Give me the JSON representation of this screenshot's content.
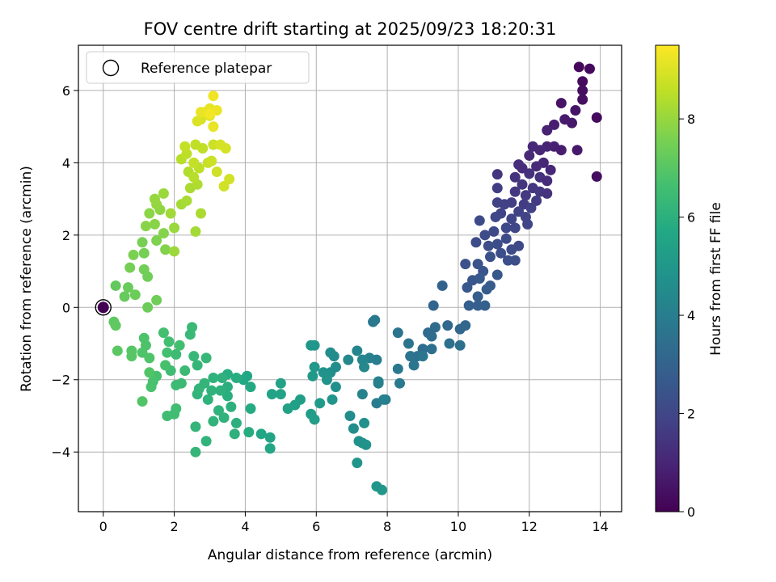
{
  "chart_data": {
    "type": "scatter",
    "title": "FOV centre drift starting at 2025/09/23 18:20:31",
    "xlabel": "Angular distance from reference (arcmin)",
    "ylabel": "Rotation from reference (arcmin)",
    "xlim": [
      -0.7,
      14.6
    ],
    "ylim": [
      -5.65,
      7.25
    ],
    "xticks": [
      0,
      2,
      4,
      6,
      8,
      10,
      12,
      14
    ],
    "yticks": [
      -4,
      -2,
      0,
      2,
      4,
      6
    ],
    "xtick_labels": [
      "0",
      "2",
      "4",
      "6",
      "8",
      "10",
      "12",
      "14"
    ],
    "ytick_labels": [
      "−4",
      "−2",
      "0",
      "2",
      "4",
      "6"
    ],
    "grid": true,
    "legend": {
      "position": "top-left",
      "entries": [
        "Reference platepar"
      ]
    },
    "reference_point": {
      "x": 0,
      "y": 0
    },
    "colorbar": {
      "label": "Hours from first FF file",
      "colormap": "viridis",
      "range": [
        0,
        9.5
      ],
      "ticks": [
        0,
        2,
        4,
        6,
        8
      ],
      "tick_labels": [
        "0",
        "2",
        "4",
        "6",
        "8"
      ]
    },
    "points": [
      [
        13.4,
        6.65,
        0.2
      ],
      [
        13.7,
        6.6,
        0.25
      ],
      [
        13.5,
        6.25,
        0.3
      ],
      [
        13.5,
        6.0,
        0.35
      ],
      [
        13.5,
        5.75,
        0.4
      ],
      [
        13.9,
        5.25,
        0.3
      ],
      [
        13.9,
        3.62,
        0.35
      ],
      [
        12.9,
        5.65,
        0.5
      ],
      [
        13.2,
        5.1,
        0.6
      ],
      [
        13.3,
        5.45,
        0.55
      ],
      [
        13.0,
        5.2,
        0.7
      ],
      [
        12.7,
        5.05,
        0.8
      ],
      [
        12.5,
        4.9,
        0.9
      ],
      [
        12.7,
        4.45,
        0.85
      ],
      [
        12.5,
        4.45,
        0.95
      ],
      [
        12.3,
        4.35,
        1.0
      ],
      [
        12.1,
        4.45,
        1.05
      ],
      [
        12.9,
        4.35,
        0.75
      ],
      [
        13.35,
        4.35,
        0.65
      ],
      [
        12.0,
        4.2,
        1.1
      ],
      [
        12.4,
        4.0,
        1.0
      ],
      [
        12.2,
        3.9,
        1.15
      ],
      [
        12.6,
        3.8,
        1.05
      ],
      [
        11.8,
        3.85,
        1.2
      ],
      [
        11.7,
        3.95,
        1.25
      ],
      [
        12.0,
        3.7,
        1.3
      ],
      [
        12.3,
        3.6,
        1.35
      ],
      [
        12.5,
        3.5,
        1.2
      ],
      [
        11.6,
        3.6,
        1.4
      ],
      [
        11.8,
        3.4,
        1.45
      ],
      [
        12.1,
        3.3,
        1.5
      ],
      [
        12.3,
        3.2,
        1.55
      ],
      [
        11.9,
        3.1,
        1.6
      ],
      [
        11.6,
        3.2,
        1.55
      ],
      [
        11.1,
        3.68,
        1.45
      ],
      [
        12.5,
        3.15,
        1.4
      ],
      [
        12.2,
        2.95,
        1.65
      ],
      [
        11.85,
        2.85,
        1.7
      ],
      [
        11.5,
        2.9,
        1.75
      ],
      [
        11.3,
        2.85,
        1.8
      ],
      [
        11.1,
        2.9,
        1.85
      ],
      [
        12.05,
        2.75,
        1.8
      ],
      [
        11.7,
        2.65,
        1.85
      ],
      [
        11.9,
        2.5,
        1.9
      ],
      [
        11.5,
        2.45,
        1.95
      ],
      [
        11.2,
        2.6,
        1.9
      ],
      [
        11.95,
        2.3,
        1.95
      ],
      [
        11.6,
        2.2,
        2.0
      ],
      [
        11.35,
        2.2,
        2.05
      ],
      [
        11.05,
        2.5,
        2.0
      ],
      [
        11.1,
        3.3,
        1.7
      ],
      [
        11.0,
        2.1,
        2.1
      ],
      [
        10.75,
        2.0,
        2.15
      ],
      [
        10.5,
        1.8,
        2.2
      ],
      [
        10.85,
        1.7,
        2.25
      ],
      [
        11.1,
        1.75,
        2.2
      ],
      [
        11.35,
        1.9,
        2.15
      ],
      [
        11.7,
        1.7,
        2.1
      ],
      [
        11.5,
        1.6,
        2.15
      ],
      [
        11.2,
        1.5,
        2.3
      ],
      [
        10.9,
        1.4,
        2.35
      ],
      [
        11.6,
        1.3,
        2.25
      ],
      [
        11.4,
        1.3,
        2.3
      ],
      [
        10.6,
        2.4,
        2.1
      ],
      [
        10.2,
        1.2,
        2.4
      ],
      [
        10.55,
        1.2,
        2.45
      ],
      [
        10.7,
        1.0,
        2.5
      ],
      [
        10.4,
        0.75,
        2.55
      ],
      [
        10.25,
        0.55,
        2.6
      ],
      [
        10.6,
        0.8,
        2.65
      ],
      [
        10.9,
        0.6,
        2.7
      ],
      [
        11.1,
        0.9,
        2.6
      ],
      [
        10.8,
        0.5,
        2.75
      ],
      [
        10.55,
        0.3,
        2.8
      ],
      [
        10.3,
        0.05,
        2.85
      ],
      [
        10.55,
        0.05,
        2.85
      ],
      [
        10.75,
        0.05,
        2.9
      ],
      [
        9.55,
        0.6,
        3.0
      ],
      [
        9.3,
        0.05,
        3.05
      ],
      [
        10.2,
        -0.5,
        3.1
      ],
      [
        10.05,
        -0.6,
        3.15
      ],
      [
        9.7,
        -0.5,
        3.2
      ],
      [
        9.35,
        -0.55,
        3.25
      ],
      [
        9.15,
        -0.7,
        3.3
      ],
      [
        9.25,
        -0.8,
        3.35
      ],
      [
        9.0,
        -1.15,
        3.4
      ],
      [
        9.25,
        -1.15,
        3.45
      ],
      [
        10.05,
        -1.05,
        3.5
      ],
      [
        9.75,
        -1.0,
        3.5
      ],
      [
        8.85,
        -1.35,
        3.55
      ],
      [
        8.65,
        -1.35,
        3.6
      ],
      [
        8.3,
        -0.7,
        3.6
      ],
      [
        8.6,
        -1.0,
        3.65
      ],
      [
        9.0,
        -1.35,
        3.7
      ],
      [
        8.75,
        -1.6,
        3.7
      ],
      [
        8.3,
        -1.7,
        3.8
      ],
      [
        8.35,
        -2.1,
        3.85
      ],
      [
        7.95,
        -2.55,
        3.9
      ],
      [
        7.7,
        -2.65,
        3.95
      ],
      [
        7.6,
        -0.4,
        3.8
      ],
      [
        7.65,
        -0.35,
        3.85
      ],
      [
        7.7,
        -1.45,
        4.0
      ],
      [
        7.5,
        -1.4,
        4.05
      ],
      [
        7.75,
        -2.1,
        4.1
      ],
      [
        7.75,
        -2.05,
        4.15
      ],
      [
        7.3,
        -2.4,
        4.2
      ],
      [
        7.15,
        -1.2,
        4.3
      ],
      [
        7.3,
        -1.45,
        4.35
      ],
      [
        7.35,
        -1.65,
        4.4
      ],
      [
        6.9,
        -1.45,
        4.4
      ],
      [
        6.5,
        -1.35,
        4.5
      ],
      [
        6.4,
        -1.25,
        4.55
      ],
      [
        6.55,
        -1.65,
        4.6
      ],
      [
        6.4,
        -1.8,
        4.65
      ],
      [
        6.55,
        -2.2,
        4.7
      ],
      [
        6.3,
        -1.85,
        4.75
      ],
      [
        6.2,
        -1.8,
        4.8
      ],
      [
        6.3,
        -2.0,
        4.85
      ],
      [
        6.45,
        -2.55,
        4.9
      ],
      [
        5.95,
        -1.05,
        5.0
      ],
      [
        5.85,
        -1.05,
        4.95
      ],
      [
        5.95,
        -1.65,
        5.05
      ],
      [
        5.9,
        -1.9,
        5.1
      ],
      [
        6.1,
        -2.65,
        5.15
      ],
      [
        5.85,
        -2.95,
        5.2
      ],
      [
        5.95,
        -3.1,
        5.25
      ],
      [
        6.95,
        -3.0,
        4.6
      ],
      [
        7.05,
        -3.35,
        4.65
      ],
      [
        7.35,
        -3.2,
        4.7
      ],
      [
        7.2,
        -3.7,
        4.75
      ],
      [
        7.3,
        -3.75,
        4.8
      ],
      [
        7.4,
        -3.8,
        4.85
      ],
      [
        7.15,
        -4.3,
        4.9
      ],
      [
        7.7,
        -4.95,
        4.95
      ],
      [
        7.85,
        -5.05,
        5.0
      ],
      [
        7.9,
        -2.55,
        4.1
      ],
      [
        5.55,
        -2.55,
        5.3
      ],
      [
        5.4,
        -2.7,
        5.35
      ],
      [
        5.2,
        -2.8,
        5.4
      ],
      [
        5.0,
        -2.1,
        5.45
      ],
      [
        5.0,
        -2.4,
        5.5
      ],
      [
        4.75,
        -2.4,
        5.5
      ],
      [
        4.7,
        -3.6,
        5.55
      ],
      [
        4.7,
        -3.9,
        5.6
      ],
      [
        4.45,
        -3.5,
        5.6
      ],
      [
        4.05,
        -1.9,
        5.65
      ],
      [
        3.95,
        -2.0,
        5.7
      ],
      [
        4.15,
        -2.2,
        5.75
      ],
      [
        4.15,
        -2.8,
        5.8
      ],
      [
        4.1,
        -3.45,
        5.85
      ],
      [
        3.75,
        -1.95,
        5.9
      ],
      [
        3.5,
        -1.85,
        5.9
      ],
      [
        3.5,
        -2.2,
        5.95
      ],
      [
        3.5,
        -2.45,
        5.95
      ],
      [
        3.6,
        -2.75,
        6.0
      ],
      [
        3.75,
        -3.2,
        6.0
      ],
      [
        3.7,
        -3.5,
        6.05
      ],
      [
        3.35,
        -1.95,
        6.05
      ],
      [
        3.3,
        -2.3,
        6.05
      ],
      [
        3.25,
        -2.85,
        6.1
      ],
      [
        3.4,
        -3.05,
        6.1
      ],
      [
        3.1,
        -1.95,
        6.1
      ],
      [
        3.05,
        -2.3,
        6.1
      ],
      [
        2.95,
        -2.55,
        6.1
      ],
      [
        3.1,
        -3.15,
        6.15
      ],
      [
        2.9,
        -3.7,
        6.15
      ],
      [
        2.65,
        -2.4,
        6.15
      ],
      [
        2.7,
        -2.25,
        6.2
      ],
      [
        2.6,
        -3.3,
        6.2
      ],
      [
        2.6,
        -4.0,
        6.25
      ],
      [
        2.85,
        -2.1,
        6.2
      ],
      [
        2.65,
        -1.6,
        6.25
      ],
      [
        2.9,
        -1.4,
        6.3
      ],
      [
        2.55,
        -1.35,
        6.3
      ],
      [
        2.45,
        -0.75,
        6.35
      ],
      [
        2.5,
        -0.55,
        6.35
      ],
      [
        2.3,
        -1.75,
        6.4
      ],
      [
        2.2,
        -2.1,
        6.4
      ],
      [
        2.05,
        -1.3,
        6.45
      ],
      [
        2.05,
        -2.15,
        6.45
      ],
      [
        1.9,
        -1.75,
        6.5
      ],
      [
        1.8,
        -3.0,
        6.5
      ],
      [
        2.0,
        -2.95,
        6.55
      ],
      [
        2.05,
        -2.8,
        6.55
      ],
      [
        2.15,
        -1.05,
        6.6
      ],
      [
        1.85,
        -0.95,
        6.6
      ],
      [
        1.7,
        -0.7,
        6.65
      ],
      [
        1.8,
        -1.25,
        6.65
      ],
      [
        1.75,
        -1.6,
        6.7
      ],
      [
        1.5,
        -1.9,
        6.7
      ],
      [
        1.4,
        -2.05,
        6.75
      ],
      [
        1.35,
        -2.2,
        6.75
      ],
      [
        1.15,
        -0.85,
        6.8
      ],
      [
        1.2,
        -1.05,
        6.8
      ],
      [
        1.3,
        -1.4,
        6.85
      ],
      [
        1.1,
        -1.25,
        6.85
      ],
      [
        1.1,
        -2.6,
        6.9
      ],
      [
        1.3,
        -1.8,
        6.9
      ],
      [
        0.8,
        -1.2,
        6.95
      ],
      [
        0.8,
        -1.35,
        7.0
      ],
      [
        0.4,
        -1.2,
        7.05
      ],
      [
        0.3,
        -0.4,
        7.1
      ],
      [
        0.35,
        -0.5,
        7.15
      ],
      [
        0.35,
        0.6,
        7.2
      ],
      [
        0.6,
        0.3,
        7.25
      ],
      [
        0.7,
        0.55,
        7.3
      ],
      [
        0.9,
        0.35,
        7.35
      ],
      [
        1.25,
        0.0,
        7.35
      ],
      [
        1.5,
        0.2,
        7.4
      ],
      [
        1.25,
        0.85,
        7.4
      ],
      [
        1.15,
        1.05,
        7.45
      ],
      [
        0.75,
        1.1,
        7.5
      ],
      [
        1.15,
        1.5,
        7.5
      ],
      [
        1.1,
        1.8,
        7.55
      ],
      [
        0.85,
        1.45,
        7.6
      ],
      [
        1.5,
        1.85,
        7.65
      ],
      [
        1.75,
        1.6,
        7.7
      ],
      [
        1.7,
        2.05,
        7.75
      ],
      [
        1.45,
        2.3,
        7.8
      ],
      [
        1.2,
        2.25,
        7.8
      ],
      [
        1.3,
        2.6,
        7.85
      ],
      [
        1.6,
        2.7,
        7.9
      ],
      [
        1.5,
        2.85,
        7.95
      ],
      [
        1.45,
        3.0,
        8.0
      ],
      [
        1.7,
        3.15,
        8.05
      ],
      [
        2.0,
        2.2,
        8.05
      ],
      [
        2.0,
        1.55,
        8.1
      ],
      [
        1.9,
        2.6,
        8.15
      ],
      [
        2.6,
        2.1,
        8.2
      ],
      [
        2.2,
        2.85,
        8.2
      ],
      [
        2.35,
        2.95,
        8.25
      ],
      [
        2.75,
        2.6,
        8.3
      ],
      [
        2.45,
        3.3,
        8.3
      ],
      [
        2.65,
        3.4,
        8.35
      ],
      [
        2.4,
        3.75,
        8.4
      ],
      [
        2.55,
        3.6,
        8.45
      ],
      [
        2.2,
        4.1,
        8.5
      ],
      [
        2.35,
        4.25,
        8.55
      ],
      [
        2.7,
        3.85,
        8.55
      ],
      [
        2.8,
        4.4,
        8.6
      ],
      [
        2.6,
        4.5,
        8.6
      ],
      [
        2.3,
        4.45,
        8.65
      ],
      [
        2.55,
        4.0,
        8.65
      ],
      [
        2.95,
        4.0,
        8.7
      ],
      [
        3.1,
        4.5,
        8.75
      ],
      [
        3.05,
        4.05,
        8.75
      ],
      [
        3.2,
        3.75,
        8.8
      ],
      [
        3.4,
        3.35,
        8.85
      ],
      [
        3.55,
        3.55,
        8.85
      ],
      [
        3.45,
        4.4,
        8.9
      ],
      [
        3.3,
        4.5,
        8.9
      ],
      [
        2.75,
        5.2,
        8.95
      ],
      [
        2.65,
        5.15,
        9.0
      ],
      [
        3.0,
        5.3,
        9.05
      ],
      [
        2.85,
        5.4,
        9.1
      ],
      [
        3.0,
        5.5,
        9.15
      ],
      [
        3.1,
        5.0,
        9.2
      ],
      [
        3.2,
        5.45,
        9.25
      ],
      [
        3.1,
        5.85,
        9.3
      ],
      [
        2.75,
        5.4,
        9.2
      ],
      [
        3.0,
        5.35,
        9.35
      ]
    ]
  }
}
